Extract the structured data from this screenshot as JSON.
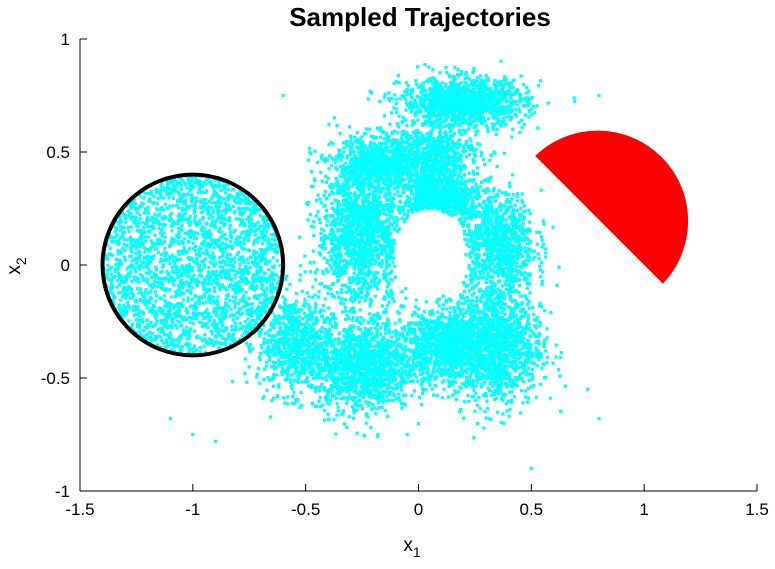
{
  "chart_data": {
    "type": "scatter",
    "title": "Sampled Trajectories",
    "xlabel": {
      "main": "x",
      "sub": "1"
    },
    "ylabel": {
      "main": "x",
      "sub": "2"
    },
    "xlim": [
      -1.5,
      1.5
    ],
    "ylim": [
      -1,
      1
    ],
    "xticks": [
      -1.5,
      -1,
      -0.5,
      0,
      0.5,
      1,
      1.5
    ],
    "yticks": [
      -1,
      -0.5,
      0,
      0.5,
      1
    ],
    "xtick_labels": [
      "-1.5",
      "-1",
      "-0.5",
      "0",
      "0.5",
      "1",
      "1.5"
    ],
    "ytick_labels": [
      "-1",
      "-0.5",
      "0",
      "0.5",
      "1"
    ],
    "grid": false,
    "point_color": "#00ffff",
    "initial_set": {
      "shape": "circle",
      "center": [
        -1,
        0
      ],
      "radius": 0.4,
      "edge_color": "#000000"
    },
    "unsafe_set": {
      "shape": "half-disk",
      "center": [
        0.8,
        0.2
      ],
      "radius": 0.4,
      "from_angle_deg": -45,
      "to_angle_deg": 135,
      "fill_color": "#ff0000"
    },
    "trajectory_clusters": [
      {
        "center": [
          -1,
          0
        ],
        "spread": [
          0.4,
          0.4
        ],
        "count": 2200,
        "shape": "disk"
      },
      {
        "center": [
          -0.55,
          -0.35
        ],
        "spread": [
          0.15,
          0.2
        ],
        "count": 700
      },
      {
        "center": [
          -0.25,
          -0.45
        ],
        "spread": [
          0.2,
          0.18
        ],
        "count": 1200
      },
      {
        "center": [
          -0.25,
          0.15
        ],
        "spread": [
          0.18,
          0.3
        ],
        "count": 1500
      },
      {
        "center": [
          -0.15,
          0.45
        ],
        "spread": [
          0.2,
          0.1
        ],
        "count": 700
      },
      {
        "center": [
          0.1,
          -0.35
        ],
        "spread": [
          0.18,
          0.15
        ],
        "count": 1000
      },
      {
        "center": [
          0.35,
          -0.35
        ],
        "spread": [
          0.18,
          0.25
        ],
        "count": 1200
      },
      {
        "center": [
          0.35,
          0.1
        ],
        "spread": [
          0.15,
          0.2
        ],
        "count": 900
      },
      {
        "center": [
          0.1,
          0.3
        ],
        "spread": [
          0.15,
          0.1
        ],
        "count": 800
      },
      {
        "center": [
          0.2,
          0.72
        ],
        "spread": [
          0.25,
          0.1
        ],
        "count": 1200
      },
      {
        "center": [
          0.05,
          0.5
        ],
        "spread": [
          0.2,
          0.1
        ],
        "count": 500
      }
    ],
    "empty_region": {
      "center": [
        0.05,
        0.05
      ],
      "radius": [
        0.16,
        0.2
      ]
    },
    "outlier_points": [
      [
        0.7,
        0.38
      ],
      [
        0.82,
        0.36
      ],
      [
        -0.6,
        0.75
      ],
      [
        -0.65,
        -0.6
      ],
      [
        -1.0,
        -0.75
      ],
      [
        -0.9,
        -0.78
      ],
      [
        -1.1,
        -0.68
      ],
      [
        0.5,
        -0.9
      ],
      [
        0.8,
        -0.68
      ],
      [
        0.75,
        -0.55
      ],
      [
        0.8,
        0.75
      ],
      [
        -0.05,
        -0.75
      ]
    ]
  }
}
